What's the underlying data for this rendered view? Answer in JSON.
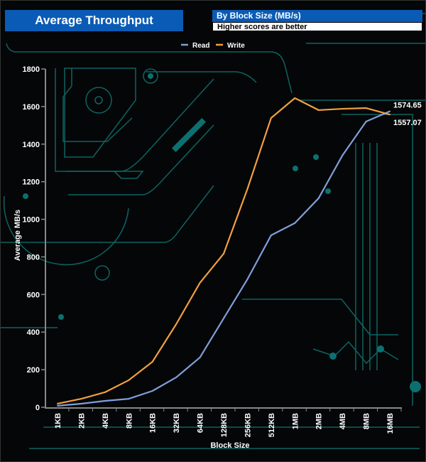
{
  "header": {
    "title": "Average Throughput",
    "subtitle": "By Block Size (MB/s)",
    "note": "Higher scores are better"
  },
  "chart_data": {
    "type": "line",
    "xlabel": "Block Size",
    "ylabel": "Average MB/s",
    "ylim": [
      0,
      1800
    ],
    "yticks": [
      0,
      200,
      400,
      600,
      800,
      1000,
      1200,
      1400,
      1600,
      1800
    ],
    "categories": [
      "1KB",
      "2KB",
      "4KB",
      "8KB",
      "16KB",
      "32KB",
      "64KB",
      "128KB",
      "256KB",
      "512KB",
      "1MB",
      "2MB",
      "4MB",
      "8MB",
      "16MB"
    ],
    "legend": "top",
    "grid": false,
    "series": [
      {
        "name": "Read",
        "color": "#7f9fdc",
        "values": [
          8,
          19,
          34,
          45,
          87,
          159,
          265,
          473,
          681,
          915,
          980,
          1112,
          1339,
          1520,
          1574.65
        ],
        "end_label": "1574.65"
      },
      {
        "name": "Write",
        "color": "#f0a040",
        "values": [
          19,
          45,
          80,
          144,
          242,
          442,
          662,
          817,
          1161,
          1539,
          1645,
          1581,
          1588,
          1592,
          1557.07
        ],
        "end_label": "1557.07"
      }
    ]
  },
  "colors": {
    "background": "#050607",
    "circuit": "#0d6e6e",
    "header": "#0a5bb5"
  }
}
